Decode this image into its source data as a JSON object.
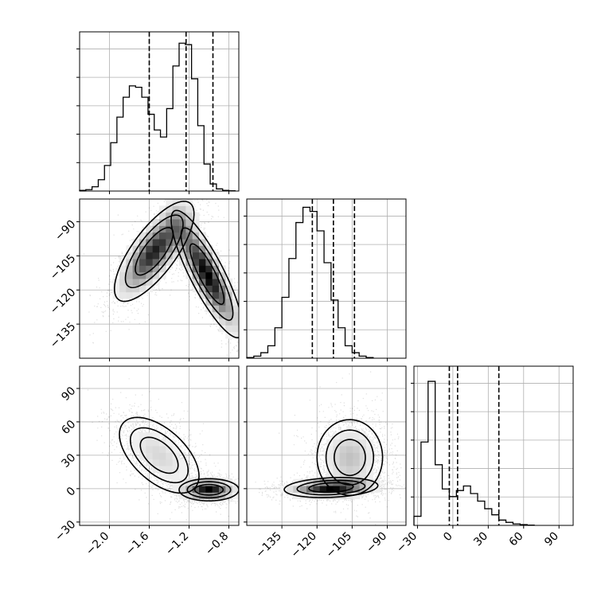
{
  "chart_data": [
    {
      "type": "histogram",
      "panel": "param1-marginal",
      "bin_edges_start": -2.3,
      "bin_width": 0.0625,
      "counts": [
        0.05,
        0.1,
        0.3,
        0.8,
        1.8,
        3.4,
        5.2,
        6.6,
        7.4,
        7.3,
        6.6,
        5.4,
        4.3,
        3.8,
        5.8,
        8.8,
        10.4,
        10.3,
        7.9,
        4.6,
        1.9,
        0.5,
        0.15,
        0.05,
        0.02
      ],
      "ymax": 11.2,
      "xlim": [
        -2.3,
        -0.7
      ],
      "quantiles": [
        -1.6,
        -1.23,
        -0.96
      ],
      "grid": true
    },
    {
      "type": "histogram",
      "panel": "param2-marginal",
      "bin_edges_start": -150,
      "bin_width": 3,
      "counts": [
        0.05,
        0.15,
        0.4,
        0.9,
        2.2,
        4.4,
        7.2,
        9.8,
        10.9,
        10.6,
        9.2,
        6.9,
        4.2,
        2.2,
        0.9,
        0.4,
        0.15,
        0.05
      ],
      "ymax": 11.5,
      "xlim": [
        -150,
        -82
      ],
      "quantiles": [
        -122,
        -113,
        -104
      ],
      "grid": true
    },
    {
      "type": "histogram",
      "panel": "param3-marginal",
      "bin_edges_start": -33,
      "bin_width": 6,
      "counts": [
        0.6,
        5.5,
        9.5,
        4.0,
        2.4,
        1.9,
        2.3,
        2.6,
        2.1,
        1.6,
        1.1,
        0.7,
        0.35,
        0.2,
        0.1,
        0.05,
        0.02
      ],
      "ymax": 10.5,
      "xlim": [
        -33,
        102
      ],
      "quantiles": [
        -3,
        4,
        39
      ],
      "grid": true
    },
    {
      "type": "contour_scatter",
      "panel": "param2-vs-param1",
      "xlim": [
        -2.3,
        -0.7
      ],
      "ylim": [
        -150,
        -80
      ],
      "xlabel": "",
      "ylabel": "",
      "blobs": [
        {
          "cx": -1.55,
          "cy": -103,
          "sx": 0.2,
          "sy": 11,
          "corr": 0.75
        },
        {
          "cx": -1.02,
          "cy": -113,
          "sx": 0.18,
          "sy": 14,
          "corr": -0.85
        }
      ]
    },
    {
      "type": "contour_scatter",
      "panel": "param3-vs-param1",
      "xlim": [
        -2.3,
        -0.7
      ],
      "ylim": [
        -33,
        110
      ],
      "xlabel": "",
      "ylabel": "",
      "blobs": [
        {
          "cx": -1.5,
          "cy": 30,
          "sx": 0.2,
          "sy": 17,
          "corr": -0.55
        },
        {
          "cx": -1.0,
          "cy": -1,
          "sx": 0.15,
          "sy": 5,
          "corr": 0
        }
      ]
    },
    {
      "type": "contour_scatter",
      "panel": "param3-vs-param2",
      "xlim": [
        -150,
        -82
      ],
      "ylim": [
        -33,
        110
      ],
      "xlabel": "",
      "ylabel": "",
      "blobs": [
        {
          "cx": -114,
          "cy": 1,
          "sx": 10,
          "sy": 4.5,
          "corr": 0.2
        },
        {
          "cx": -106,
          "cy": 28,
          "sx": 7,
          "sy": 17,
          "corr": 0
        }
      ]
    }
  ],
  "ticks": {
    "param1": [
      {
        "v": -2.0,
        "label": "−2.0"
      },
      {
        "v": -1.6,
        "label": "−1.6"
      },
      {
        "v": -1.2,
        "label": "−1.2"
      },
      {
        "v": -0.8,
        "label": "−0.8"
      }
    ],
    "param2": [
      {
        "v": -135,
        "label": "−135"
      },
      {
        "v": -120,
        "label": "−120"
      },
      {
        "v": -105,
        "label": "−105"
      },
      {
        "v": -90,
        "label": "−90"
      }
    ],
    "param3": [
      {
        "v": -30,
        "label": "−30"
      },
      {
        "v": 0,
        "label": "0"
      },
      {
        "v": 30,
        "label": "30"
      },
      {
        "v": 60,
        "label": "60"
      },
      {
        "v": 90,
        "label": "90"
      }
    ]
  }
}
